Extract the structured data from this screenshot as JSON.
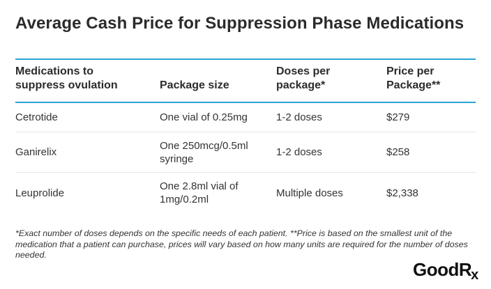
{
  "title": "Average Cash Price for Suppression Phase Medications",
  "table": {
    "headers": [
      "Medications to\nsuppress ovulation",
      "Package size",
      "Doses per\npackage*",
      "Price per\nPackage**"
    ],
    "rows": [
      [
        "Cetrotide",
        "One vial of 0.25mg",
        "1-2 doses",
        "$279"
      ],
      [
        "Ganirelix",
        "One 250mcg/0.5ml\nsyringe",
        "1-2 doses",
        "$258"
      ],
      [
        "Leuprolide",
        "One 2.8ml vial of\n1mg/0.2ml",
        "Multiple doses",
        "$2,338"
      ]
    ]
  },
  "footnote": "*Exact number of doses depends on the specific needs of each patient. **Price is based on the smallest unit of the medication that a patient can purchase, prices will vary based on how many units are required for the number of doses needed.",
  "logo": {
    "main": "GoodR",
    "suffix": "x"
  },
  "colors": {
    "rule": "#2aa3d3",
    "text": "#2b2b2b"
  }
}
